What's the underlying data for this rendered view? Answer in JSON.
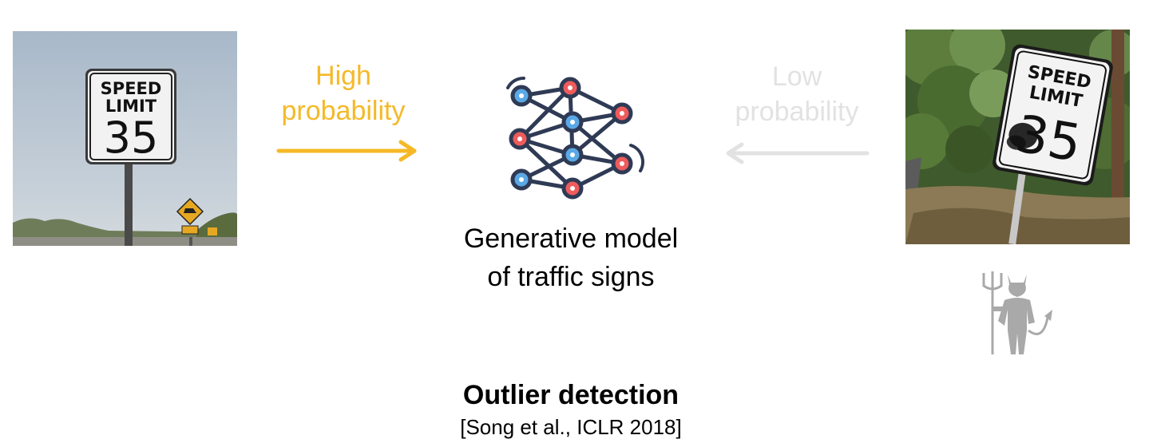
{
  "left_image": {
    "sign_line1": "SPEED",
    "sign_line2": "LIMIT",
    "sign_number": "35"
  },
  "arrow_high": {
    "line1": "High",
    "line2": "probability",
    "color": "#f5b928"
  },
  "arrow_low": {
    "line1": "Low",
    "line2": "probability",
    "color": "#e2e2e2"
  },
  "center": {
    "icon": "neural-network-icon",
    "caption_line1": "Generative model",
    "caption_line2": "of traffic signs"
  },
  "right_image": {
    "sign_line1": "SPEED",
    "sign_line2": "LIMIT",
    "sign_number": "35"
  },
  "adversary_icon": "devil-icon",
  "footer": {
    "title": "Outlier detection",
    "citation": "[Song et al., ICLR 2018]"
  }
}
